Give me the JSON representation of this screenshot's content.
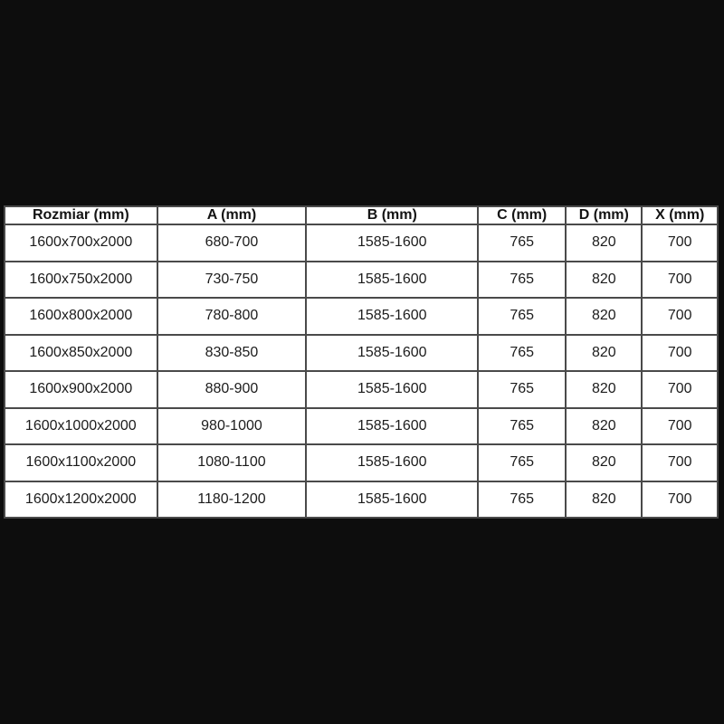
{
  "table": {
    "columns": [
      "Rozmiar (mm)",
      "A (mm)",
      "B (mm)",
      "C (mm)",
      "D (mm)",
      "X (mm)"
    ],
    "rows": [
      [
        "1600x700x2000",
        "680-700",
        "1585-1600",
        "765",
        "820",
        "700"
      ],
      [
        "1600x750x2000",
        "730-750",
        "1585-1600",
        "765",
        "820",
        "700"
      ],
      [
        "1600x800x2000",
        "780-800",
        "1585-1600",
        "765",
        "820",
        "700"
      ],
      [
        "1600x850x2000",
        "830-850",
        "1585-1600",
        "765",
        "820",
        "700"
      ],
      [
        "1600x900x2000",
        "880-900",
        "1585-1600",
        "765",
        "820",
        "700"
      ],
      [
        "1600x1000x2000",
        "980-1000",
        "1585-1600",
        "765",
        "820",
        "700"
      ],
      [
        "1600x1100x2000",
        "1080-1100",
        "1585-1600",
        "765",
        "820",
        "700"
      ],
      [
        "1600x1200x2000",
        "1180-1200",
        "1585-1600",
        "765",
        "820",
        "700"
      ]
    ]
  },
  "colors": {
    "background": "#0d0d0d",
    "table_background": "#ffffff",
    "border": "#4a4a4a",
    "text": "#1c1c1c"
  }
}
